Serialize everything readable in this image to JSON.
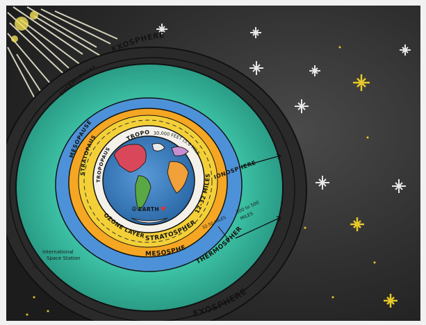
{
  "layers": {
    "exosphere_top": "EXOSPHERE",
    "exosphere_bottom": "EXOSPHERE",
    "thermopause": "THERMOPAUSE",
    "mesopause": "MESOPAUSE",
    "stratopause": "STRATOPAUSE",
    "tropopause": "TROPOPAUSE",
    "troposphere": "TROPOSPHERE",
    "stratosphere": "STRATOSPHERE",
    "ozone": "OZONE LAYER",
    "mesosphere": "MESOSPHERE",
    "thermosphere": "THERMOSPHERE",
    "ionosphere": "IONOSPHERE",
    "earth": "EARTH"
  },
  "annotations": {
    "troposphere_height": "30,000 FEET (5.6 MILES)",
    "stratosphere_height": "12-32 MILES",
    "mesosphere_height": "32-50 MILES",
    "thermosphere_height_line1": "300 to 500",
    "thermosphere_height_line2": "MILES",
    "iss_line1": "International",
    "iss_line2": "Space Station"
  },
  "colors": {
    "space": "#3a3a3a",
    "exosphere": "#2f2f2f",
    "thermosphere": "#35b59b",
    "mesosphere": "#4a8fd6",
    "stratosphere": "#f5a623",
    "ozone": "#f4d038",
    "troposphere": "#f2f2ee",
    "ocean": "#3b7fc4",
    "land": "#5aa845"
  }
}
